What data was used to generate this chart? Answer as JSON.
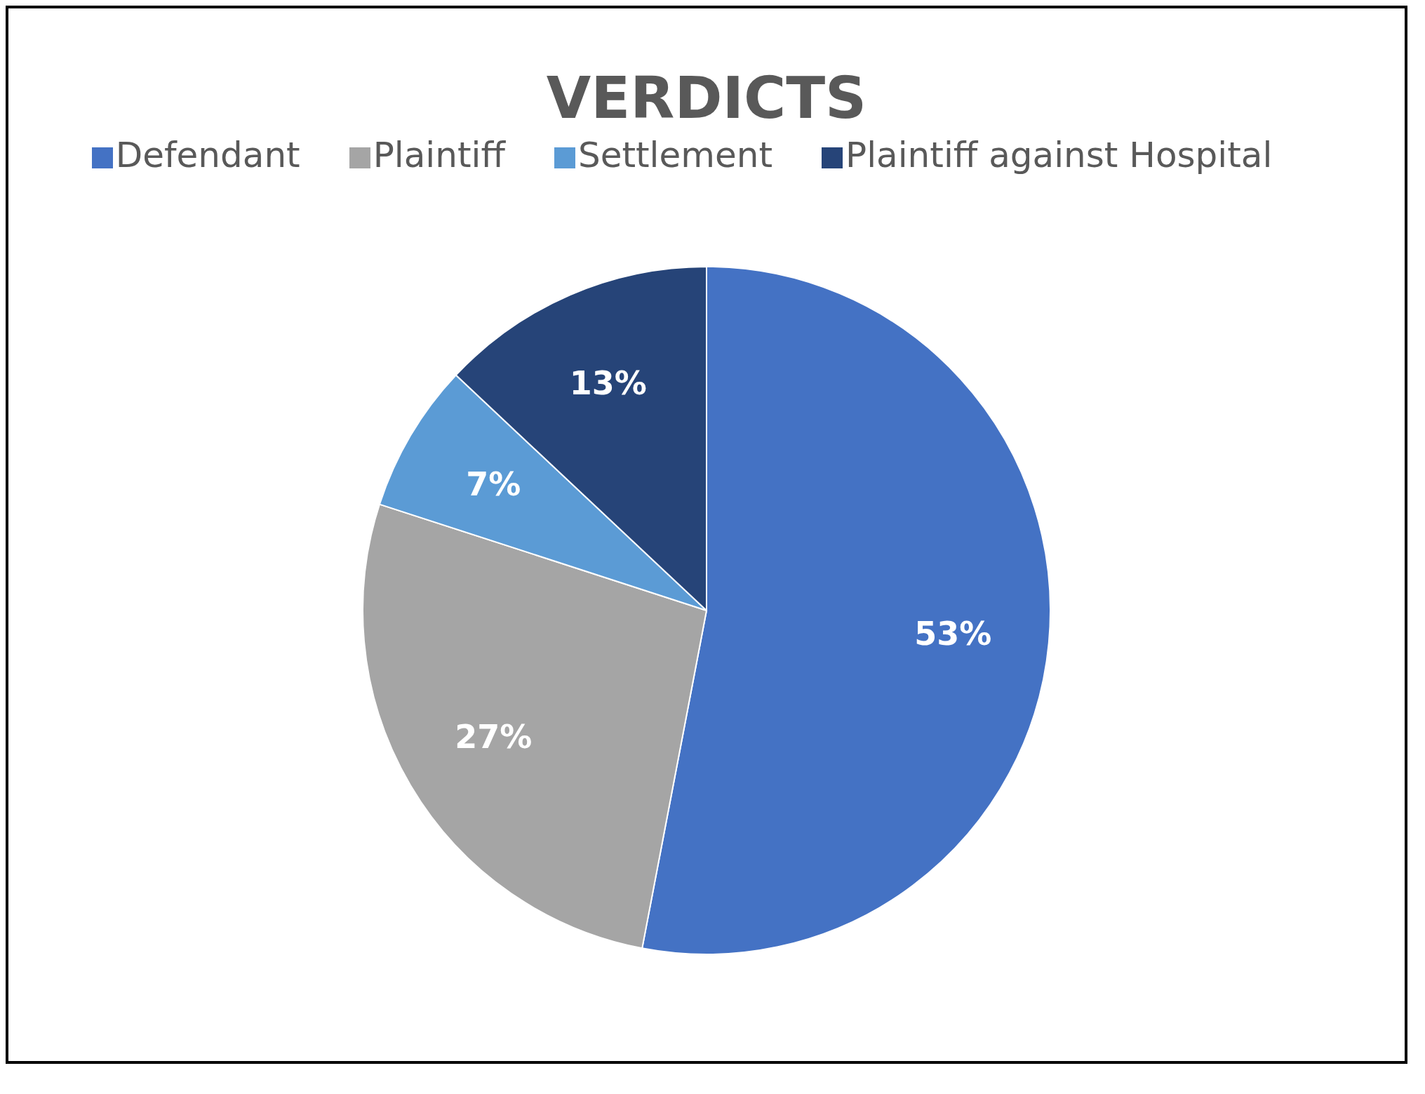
{
  "chart_data": {
    "type": "pie",
    "title": "VERDICTS",
    "categories": [
      "Defendant",
      "Plaintiff",
      "Settlement",
      "Plaintiff against Hospital"
    ],
    "values": [
      53,
      27,
      7,
      13
    ],
    "colors": [
      "#4472c4",
      "#a5a5a5",
      "#5b9bd5",
      "#264478"
    ],
    "value_labels": [
      "53%",
      "27%",
      "7%",
      "13%"
    ],
    "legend": "top"
  }
}
